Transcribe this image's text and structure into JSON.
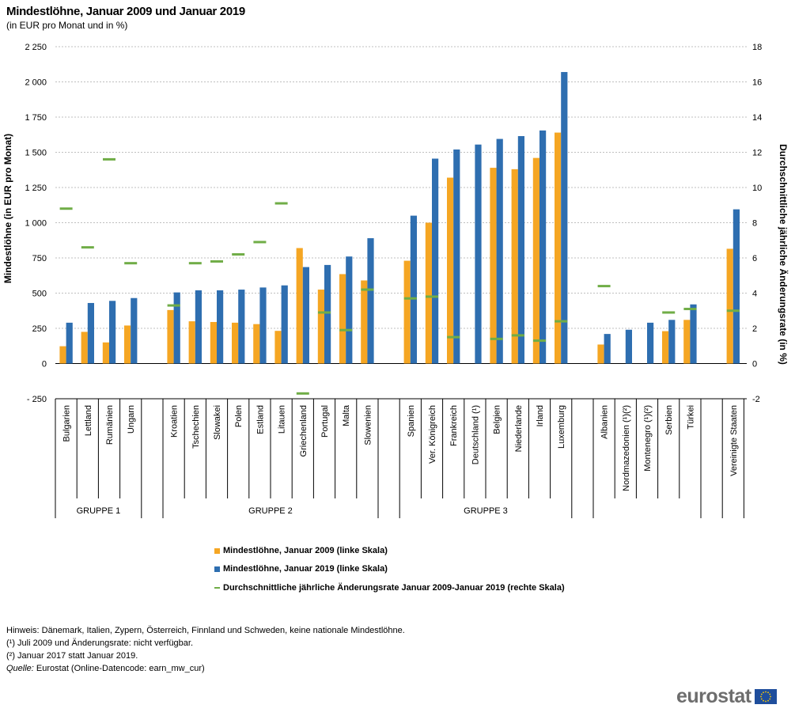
{
  "title": "Mindestlöhne, Januar 2009 und Januar 2019",
  "subtitle": "(in EUR pro Monat und in %)",
  "chart_data": {
    "type": "bar",
    "categories": [
      "Bulgarien",
      "Lettland",
      "Rumänien",
      "Ungarn",
      "Kroatien",
      "Tschechien",
      "Slowakei",
      "Polen",
      "Estland",
      "Litauen",
      "Griechenland",
      "Portugal",
      "Malta",
      "Slowenien",
      "Spanien",
      "Ver. Königreich",
      "Frankreich",
      "Deutschland (¹)",
      "Belgien",
      "Niederlande",
      "Irland",
      "Luxemburg",
      "Albanien",
      "Nordmazedonien (¹)(²)",
      "Montenegro (¹)(²)",
      "Serbien",
      "Türkei",
      "Vereinigte Staaten"
    ],
    "groups": [
      {
        "name": "GRUPPE 1",
        "count": 4
      },
      {
        "name": "GRUPPE 2",
        "count": 10
      },
      {
        "name": "GRUPPE 3",
        "count": 8
      },
      {
        "name": "",
        "count": 5
      },
      {
        "name": "",
        "count": 1
      }
    ],
    "series": [
      {
        "name": "Mindestlöhne, Januar 2009  (linke Skala)",
        "color": "#f5a623",
        "axis": "left",
        "values": [
          123,
          225,
          150,
          270,
          380,
          300,
          295,
          290,
          280,
          232,
          820,
          525,
          635,
          590,
          730,
          1000,
          1320,
          null,
          1390,
          1380,
          1460,
          1640,
          135,
          null,
          null,
          230,
          310,
          815
        ]
      },
      {
        "name": "Mindestlöhne, Januar 2019 (linke Skala)",
        "color": "#2e6eb0",
        "axis": "left",
        "values": [
          290,
          430,
          445,
          465,
          505,
          520,
          520,
          525,
          540,
          555,
          685,
          700,
          760,
          890,
          1050,
          1455,
          1520,
          1555,
          1595,
          1615,
          1655,
          2070,
          210,
          240,
          290,
          310,
          420,
          1095
        ]
      },
      {
        "name": "Durchschnittliche jährliche Änderungsrate Januar 2009-Januar 2019 (rechte Skala)",
        "color": "#70ad47",
        "axis": "right",
        "type": "marker",
        "values": [
          8.8,
          6.6,
          11.6,
          5.7,
          3.3,
          5.7,
          5.8,
          6.2,
          6.9,
          9.1,
          -1.7,
          2.9,
          1.9,
          4.2,
          3.7,
          3.8,
          1.5,
          null,
          1.4,
          1.6,
          1.3,
          2.4,
          4.4,
          null,
          null,
          2.9,
          3.1,
          3.0
        ]
      }
    ],
    "ylabel_left": "Mindestlöhne (in EUR pro Monat)",
    "ylabel_right": "Durchschnittliche jährliche Änderungsrate (in %)",
    "ylim_left": [
      -250,
      2250
    ],
    "ylim_right": [
      -2,
      18
    ],
    "yticks_left": [
      "- 250",
      "0",
      "250",
      "500",
      "750",
      "1 000",
      "1 250",
      "1 500",
      "1 750",
      "2 000",
      "2 250"
    ],
    "yticks_right": [
      "-2",
      "0",
      "2",
      "4",
      "6",
      "8",
      "10",
      "12",
      "14",
      "16",
      "18"
    ],
    "grid": true,
    "legend_position": "bottom"
  },
  "legend": [
    {
      "label": "Mindestlöhne, Januar 2009  (linke Skala)",
      "color": "#f5a623"
    },
    {
      "label": "Mindestlöhne, Januar 2019 (linke Skala)",
      "color": "#2e6eb0"
    },
    {
      "label": "Durchschnittliche jährliche Änderungsrate Januar 2009-Januar 2019 (rechte Skala)",
      "color": "#70ad47"
    }
  ],
  "notes": {
    "hint": "Hinweis: Dänemark, Italien, Zypern, Österreich, Finnland und Schweden, keine nationale Mindestlöhne.",
    "note1": "(¹) Juli 2009 und Änderungsrate: nicht verfügbar.",
    "note2": "(²) Januar 2017 statt Januar 2019.",
    "source_label": "Quelle:",
    "source_text": " Eurostat (Online-Datencode: earn_mw_cur)"
  },
  "logo_text": "eurostat"
}
